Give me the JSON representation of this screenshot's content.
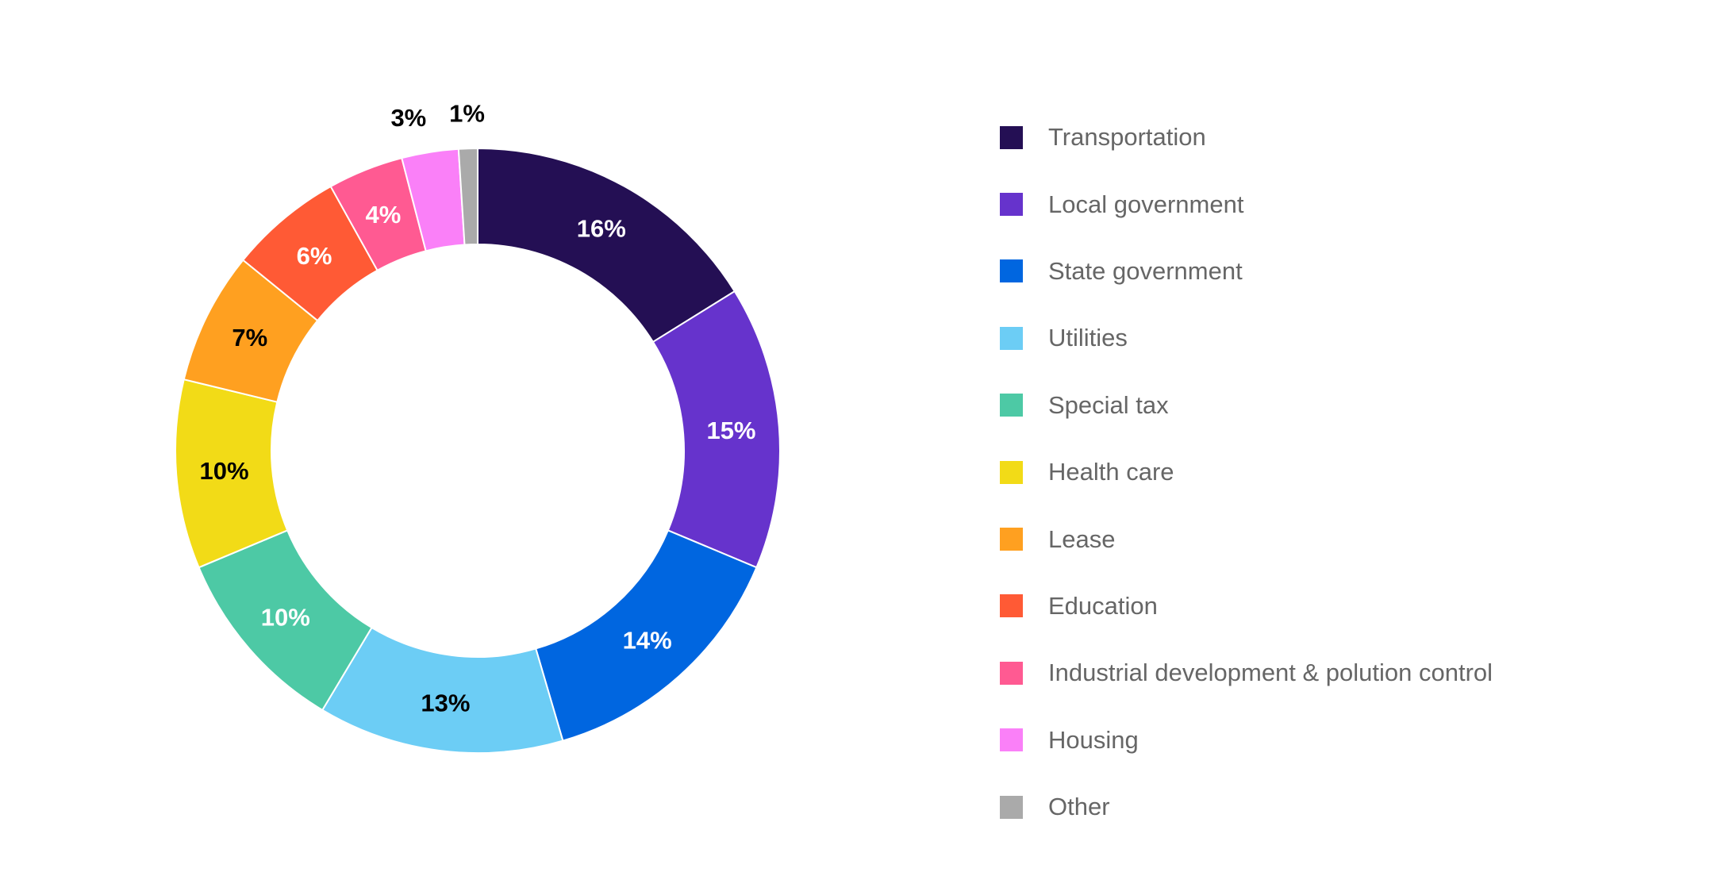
{
  "chart_data": {
    "type": "pie",
    "donut": true,
    "title": "",
    "start_angle": "top, clockwise",
    "legend_position": "right",
    "categories": [
      "Transportation",
      "Local government",
      "State government",
      "Utilities",
      "Special tax",
      "Health care",
      "Lease",
      "Education",
      "Industrial development & polution control",
      "Housing",
      "Other"
    ],
    "values": [
      16,
      15,
      14,
      13,
      10,
      10,
      7,
      6,
      4,
      3,
      1
    ],
    "labels": [
      "16%",
      "15%",
      "14%",
      "13%",
      "10%",
      "10%",
      "7%",
      "6%",
      "4%",
      "3%",
      "1%"
    ],
    "colors": [
      "#240f54",
      "#6633cc",
      "#0066e0",
      "#6ccdf5",
      "#4dc9a5",
      "#f2db17",
      "#ffa020",
      "#ff5a35",
      "#ff5a92",
      "#fa80f8",
      "#aaaaaa"
    ],
    "label_colors": [
      "#ffffff",
      "#ffffff",
      "#ffffff",
      "#000000",
      "#ffffff",
      "#000000",
      "#000000",
      "#ffffff",
      "#ffffff",
      "#000000",
      "#000000"
    ]
  }
}
